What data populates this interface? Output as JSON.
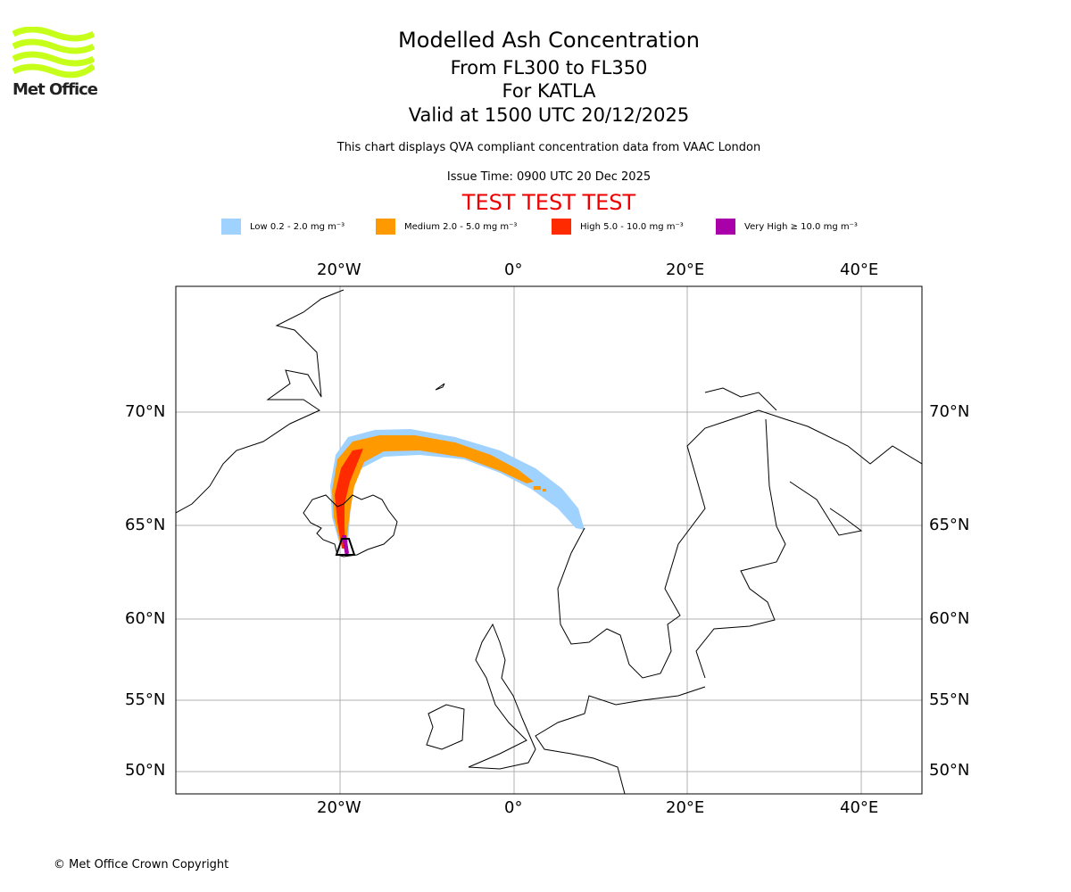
{
  "logo": {
    "text": "Met Office"
  },
  "title": {
    "main": "Modelled Ash Concentration",
    "levels": "From FL300 to FL350",
    "volcano": "For KATLA",
    "valid": "Valid at 1500 UTC 20/12/2025"
  },
  "subtitle": "This chart displays QVA compliant concentration data from VAAC London",
  "issue_time": "Issue Time: 0900 UTC 20 Dec 2025",
  "test_banner": "TEST TEST TEST",
  "legend": [
    {
      "label": "Low 0.2 - 2.0 mg m⁻³",
      "color": "#a0d2ff"
    },
    {
      "label": "Medium 2.0 - 5.0 mg m⁻³",
      "color": "#ff9900"
    },
    {
      "label": "High 5.0 - 10.0 mg m⁻³",
      "color": "#ff2a00"
    },
    {
      "label": "Very High ≥ 10.0 mg m⁻³",
      "color": "#aa00aa"
    }
  ],
  "axes": {
    "lon_ticks": [
      "20°W",
      "0°",
      "20°E",
      "40°E"
    ],
    "lat_ticks": [
      "70°N",
      "65°N",
      "60°N",
      "55°N",
      "50°N"
    ]
  },
  "copyright": "© Met Office Crown Copyright"
}
